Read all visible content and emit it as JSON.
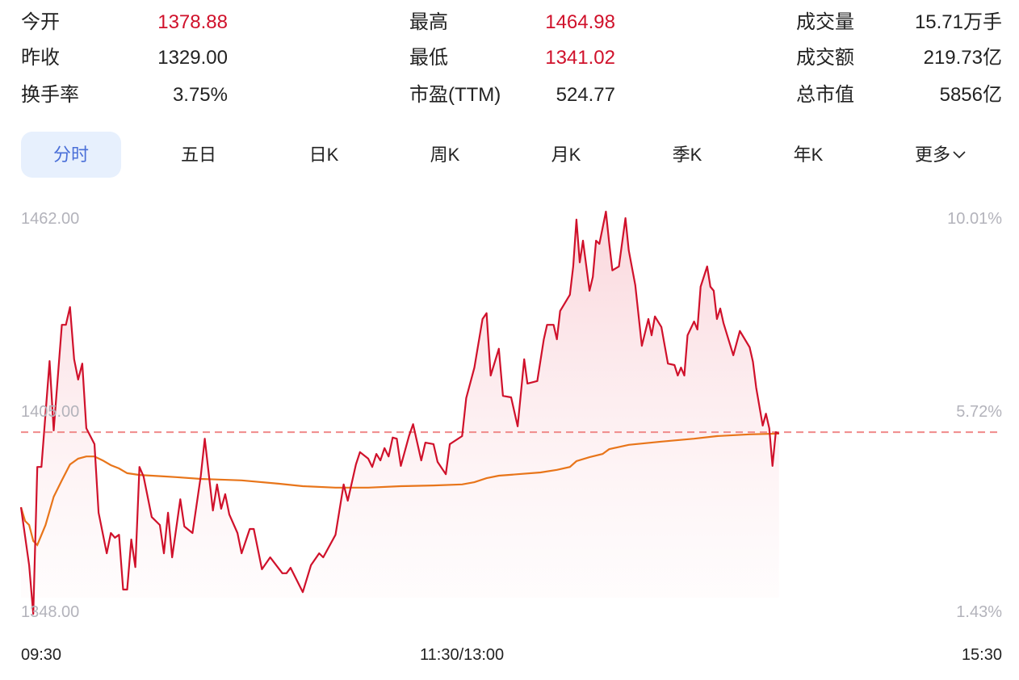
{
  "stats": [
    {
      "label": "今开",
      "value": "1378.88",
      "color": "#d0112b"
    },
    {
      "label": "昨收",
      "value": "1329.00",
      "color": "#222222"
    },
    {
      "label": "换手率",
      "value": "3.75%",
      "color": "#222222"
    },
    {
      "label": "最高",
      "value": "1464.98",
      "color": "#d0112b"
    },
    {
      "label": "最低",
      "value": "1341.02",
      "color": "#d0112b"
    },
    {
      "label": "市盈(TTM)",
      "value": "524.77",
      "color": "#222222"
    },
    {
      "label": "成交量",
      "value": "15.71万手",
      "color": "#222222"
    },
    {
      "label": "成交额",
      "value": "219.73亿",
      "color": "#222222"
    },
    {
      "label": "总市值",
      "value": "5856亿",
      "color": "#222222"
    }
  ],
  "tabs": [
    {
      "label": "分时",
      "active": true
    },
    {
      "label": "五日"
    },
    {
      "label": "日K"
    },
    {
      "label": "周K"
    },
    {
      "label": "月K"
    },
    {
      "label": "季K"
    },
    {
      "label": "年K"
    },
    {
      "label": "更多"
    }
  ],
  "more_icon": "chevron-down-icon",
  "chart_data": {
    "type": "line",
    "y_ticks_left": [
      "1462.00",
      "1405.00",
      "1348.00"
    ],
    "y_ticks_right": [
      "10.01%",
      "5.72%",
      "1.43%"
    ],
    "x_ticks": [
      "09:30",
      "11:30/13:00",
      "15:30"
    ],
    "ylim": [
      1348,
      1462
    ],
    "reference_line_price": 1400.3,
    "colors": {
      "price": "#d0112b",
      "average": "#e8751a",
      "reference": "#f08a8a",
      "fill": "#fbe3e6"
    },
    "series": [
      {
        "key": "price",
        "points": [
          [
            "09:30",
            1379.6
          ],
          [
            "09:32",
            1363.6
          ],
          [
            "09:33",
            1350.2
          ],
          [
            "09:34",
            1390.7
          ],
          [
            "09:35",
            1390.7
          ],
          [
            "09:37",
            1419.9
          ],
          [
            "09:38",
            1400.8
          ],
          [
            "09:40",
            1429.9
          ],
          [
            "09:41",
            1429.9
          ],
          [
            "09:42",
            1434.8
          ],
          [
            "09:43",
            1420.4
          ],
          [
            "09:44",
            1414.8
          ],
          [
            "09:45",
            1419.2
          ],
          [
            "09:46",
            1401.4
          ],
          [
            "09:48",
            1397.0
          ],
          [
            "09:49",
            1378.1
          ],
          [
            "09:51",
            1366.9
          ],
          [
            "09:52",
            1372.5
          ],
          [
            "09:53",
            1371.2
          ],
          [
            "09:54",
            1372.0
          ],
          [
            "09:55",
            1356.9
          ],
          [
            "09:56",
            1356.9
          ],
          [
            "09:57",
            1370.7
          ],
          [
            "09:58",
            1363.1
          ],
          [
            "09:59",
            1390.7
          ],
          [
            "10:00",
            1388.1
          ],
          [
            "10:02",
            1376.9
          ],
          [
            "10:04",
            1374.7
          ],
          [
            "10:05",
            1366.9
          ],
          [
            "10:06",
            1378.1
          ],
          [
            "10:07",
            1365.8
          ],
          [
            "10:09",
            1381.8
          ],
          [
            "10:10",
            1374.3
          ],
          [
            "10:12",
            1372.5
          ],
          [
            "10:14",
            1388.1
          ],
          [
            "10:15",
            1398.5
          ],
          [
            "10:17",
            1378.7
          ],
          [
            "10:18",
            1385.9
          ],
          [
            "10:19",
            1379.2
          ],
          [
            "10:20",
            1383.2
          ],
          [
            "10:21",
            1377.6
          ],
          [
            "10:23",
            1372.5
          ],
          [
            "10:24",
            1366.9
          ],
          [
            "10:26",
            1373.6
          ],
          [
            "10:27",
            1373.6
          ],
          [
            "10:29",
            1362.5
          ],
          [
            "10:31",
            1365.8
          ],
          [
            "10:34",
            1361.4
          ],
          [
            "10:35",
            1361.4
          ],
          [
            "10:36",
            1362.9
          ],
          [
            "10:39",
            1356.2
          ],
          [
            "10:41",
            1363.6
          ],
          [
            "10:43",
            1366.9
          ],
          [
            "10:44",
            1365.8
          ],
          [
            "10:47",
            1372.0
          ],
          [
            "10:49",
            1385.9
          ],
          [
            "10:50",
            1381.4
          ],
          [
            "10:52",
            1391.4
          ],
          [
            "10:53",
            1394.8
          ],
          [
            "10:55",
            1393.0
          ],
          [
            "10:56",
            1390.7
          ],
          [
            "10:57",
            1394.3
          ],
          [
            "10:58",
            1392.5
          ],
          [
            "10:59",
            1395.9
          ],
          [
            "11:00",
            1393.6
          ],
          [
            "11:01",
            1398.8
          ],
          [
            "11:02",
            1398.5
          ],
          [
            "11:03",
            1391.0
          ],
          [
            "11:05",
            1399.2
          ],
          [
            "11:06",
            1402.5
          ],
          [
            "11:08",
            1392.5
          ],
          [
            "11:09",
            1397.4
          ],
          [
            "11:11",
            1397.0
          ],
          [
            "11:12",
            1392.1
          ],
          [
            "11:14",
            1388.7
          ],
          [
            "11:15",
            1397.0
          ],
          [
            "11:18",
            1399.2
          ],
          [
            "11:19",
            1409.7
          ],
          [
            "11:21",
            1418.1
          ],
          [
            "11:23",
            1431.5
          ],
          [
            "11:24",
            1433.1
          ],
          [
            "11:25",
            1415.9
          ],
          [
            "11:27",
            1423.3
          ],
          [
            "11:28",
            1410.3
          ],
          [
            "11:30",
            1409.9
          ],
          [
            "13:02",
            1401.9
          ],
          [
            "13:04",
            1420.4
          ],
          [
            "13:05",
            1413.7
          ],
          [
            "13:08",
            1414.4
          ],
          [
            "13:10",
            1425.9
          ],
          [
            "13:11",
            1429.9
          ],
          [
            "13:13",
            1429.9
          ],
          [
            "13:14",
            1425.9
          ],
          [
            "13:15",
            1433.7
          ],
          [
            "13:18",
            1438.2
          ],
          [
            "13:19",
            1446.0
          ],
          [
            "13:20",
            1458.9
          ],
          [
            "13:21",
            1447.1
          ],
          [
            "13:22",
            1453.1
          ],
          [
            "13:24",
            1439.3
          ],
          [
            "13:25",
            1443.1
          ],
          [
            "13:26",
            1453.1
          ],
          [
            "13:27",
            1452.2
          ],
          [
            "13:29",
            1461.1
          ],
          [
            "13:30",
            1452.6
          ],
          [
            "13:31",
            1444.9
          ],
          [
            "13:33",
            1446.0
          ],
          [
            "13:35",
            1459.3
          ],
          [
            "13:36",
            1450.4
          ],
          [
            "13:38",
            1440.8
          ],
          [
            "13:40",
            1424.1
          ],
          [
            "13:42",
            1431.5
          ],
          [
            "13:43",
            1427.0
          ],
          [
            "13:44",
            1432.2
          ],
          [
            "13:46",
            1429.3
          ],
          [
            "13:48",
            1419.2
          ],
          [
            "13:50",
            1418.8
          ],
          [
            "13:51",
            1415.9
          ],
          [
            "13:52",
            1418.1
          ],
          [
            "13:53",
            1415.9
          ],
          [
            "13:54",
            1427.0
          ],
          [
            "13:56",
            1430.8
          ],
          [
            "13:57",
            1428.6
          ],
          [
            "13:58",
            1440.4
          ],
          [
            "14:00",
            1446.0
          ],
          [
            "14:01",
            1440.4
          ],
          [
            "14:02",
            1439.3
          ],
          [
            "14:03",
            1431.5
          ],
          [
            "14:04",
            1434.4
          ],
          [
            "14:05",
            1430.4
          ],
          [
            "14:08",
            1421.5
          ],
          [
            "14:10",
            1428.2
          ],
          [
            "14:13",
            1423.7
          ],
          [
            "14:14",
            1419.7
          ],
          [
            "14:15",
            1412.6
          ],
          [
            "14:17",
            1402.1
          ],
          [
            "14:18",
            1405.4
          ],
          [
            "14:19",
            1401.4
          ],
          [
            "14:20",
            1391.0
          ],
          [
            "14:21",
            1400.3
          ],
          [
            "14:22",
            1399.9
          ]
        ]
      },
      {
        "key": "average",
        "points": [
          [
            "09:30",
            1379.6
          ],
          [
            "09:31",
            1375.8
          ],
          [
            "09:32",
            1374.7
          ],
          [
            "09:33",
            1370.3
          ],
          [
            "09:34",
            1369.2
          ],
          [
            "09:36",
            1374.7
          ],
          [
            "09:38",
            1382.5
          ],
          [
            "09:40",
            1387.0
          ],
          [
            "09:42",
            1391.4
          ],
          [
            "09:44",
            1393.0
          ],
          [
            "09:46",
            1393.6
          ],
          [
            "09:48",
            1393.6
          ],
          [
            "09:50",
            1392.5
          ],
          [
            "09:52",
            1391.2
          ],
          [
            "09:54",
            1390.3
          ],
          [
            "09:56",
            1389.0
          ],
          [
            "09:59",
            1388.5
          ],
          [
            "10:02",
            1388.3
          ],
          [
            "10:05",
            1388.1
          ],
          [
            "10:08",
            1387.9
          ],
          [
            "10:14",
            1387.4
          ],
          [
            "10:24",
            1387.0
          ],
          [
            "10:33",
            1386.1
          ],
          [
            "10:39",
            1385.4
          ],
          [
            "10:47",
            1385.0
          ],
          [
            "10:55",
            1385.0
          ],
          [
            "11:03",
            1385.4
          ],
          [
            "11:11",
            1385.6
          ],
          [
            "11:18",
            1385.9
          ],
          [
            "11:21",
            1386.5
          ],
          [
            "11:24",
            1387.6
          ],
          [
            "11:27",
            1388.3
          ],
          [
            "13:02",
            1388.7
          ],
          [
            "13:09",
            1389.2
          ],
          [
            "13:14",
            1389.9
          ],
          [
            "13:18",
            1390.7
          ],
          [
            "13:20",
            1392.3
          ],
          [
            "13:24",
            1393.4
          ],
          [
            "13:28",
            1394.3
          ],
          [
            "13:30",
            1395.6
          ],
          [
            "13:36",
            1396.8
          ],
          [
            "13:46",
            1397.7
          ],
          [
            "13:56",
            1398.5
          ],
          [
            "14:03",
            1399.2
          ],
          [
            "14:13",
            1399.7
          ],
          [
            "14:22",
            1399.9
          ]
        ]
      }
    ]
  }
}
